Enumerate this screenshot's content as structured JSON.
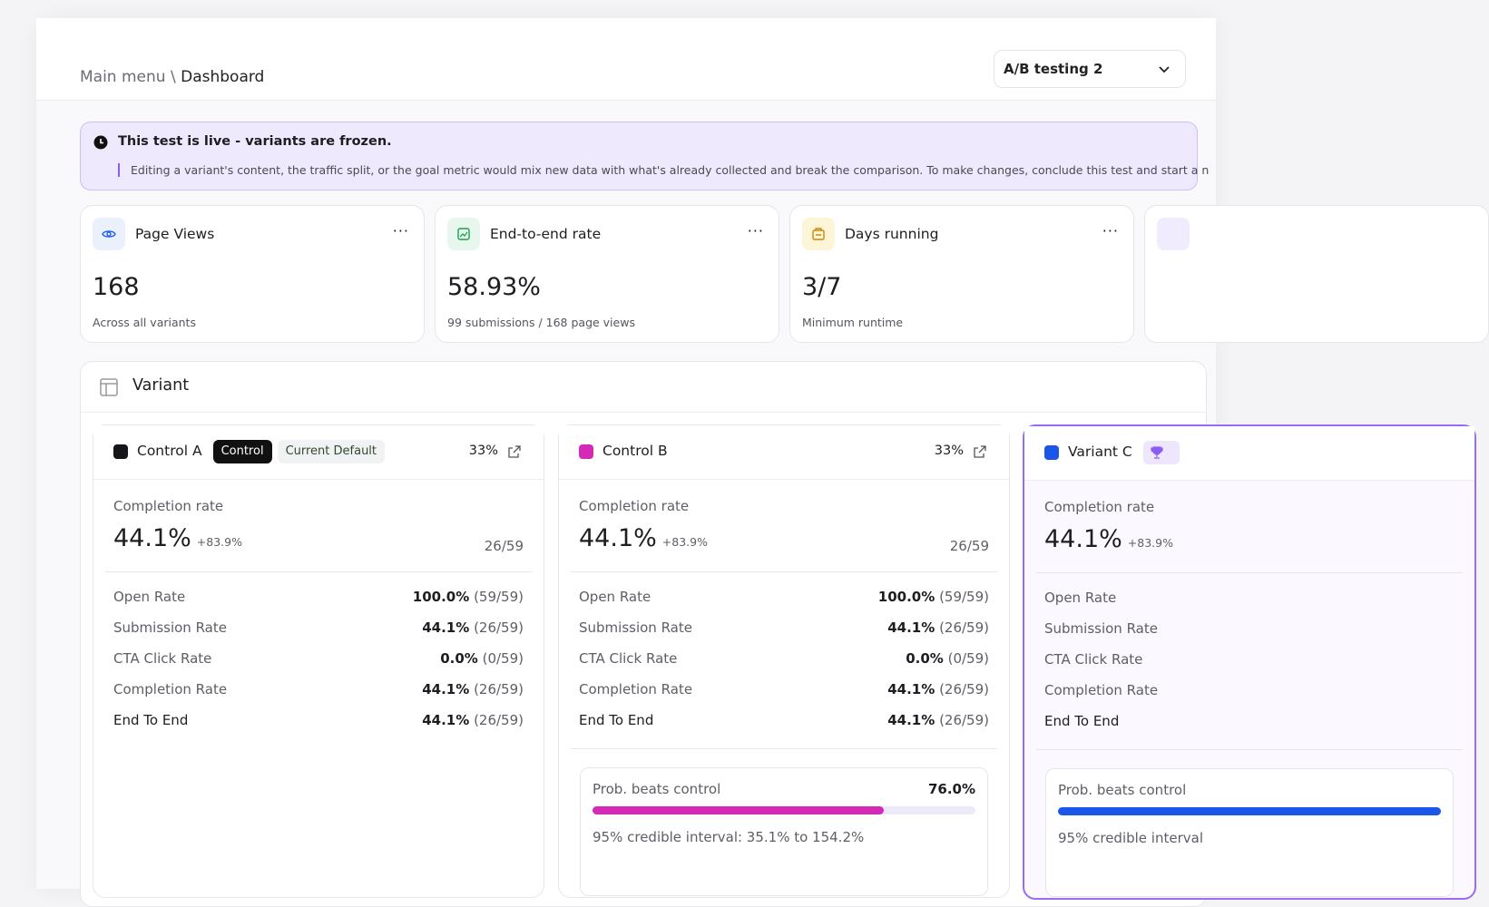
{
  "breadcrumb": {
    "parent": "Main menu",
    "separator": "\\",
    "current": "Dashboard"
  },
  "test_selector": {
    "label": "A/B testing 2"
  },
  "banner": {
    "title": "This test is live - variants are frozen.",
    "body": "Editing a variant's content, the traffic split, or the goal metric would mix new data with what's already collected and break the comparison. To make changes, conclude this test and start a n"
  },
  "stats": [
    {
      "title": "Page Views",
      "value": "168",
      "caption": "Across all variants"
    },
    {
      "title": "End-to-end rate",
      "value": "58.93%",
      "caption": "99 submissions / 168 page views"
    },
    {
      "title": "Days running",
      "value": "3/7",
      "caption": "Minimum runtime"
    }
  ],
  "variants_panel": {
    "title": "Variant",
    "cards": [
      {
        "name": "Control A",
        "color": "#16161a",
        "tags": [
          "Control",
          "Current Default"
        ],
        "split": "33%",
        "metric_label": "Completion rate",
        "metric_value": "44.1%",
        "metric_delta": "+83.9%",
        "metric_count": "26/59",
        "rows": [
          {
            "label": "Open Rate",
            "value": "100.0%",
            "count": "(59/59)"
          },
          {
            "label": "Submission Rate",
            "value": "44.1%",
            "count": "(26/59)"
          },
          {
            "label": "CTA Click Rate",
            "value": "0.0%",
            "count": "(0/59)"
          },
          {
            "label": "Completion Rate",
            "value": "44.1%",
            "count": "(26/59)"
          },
          {
            "label": "End To End",
            "value": "44.1%",
            "count": "(26/59)"
          }
        ]
      },
      {
        "name": "Control B",
        "color": "#d42ab8",
        "split": "33%",
        "metric_label": "Completion rate",
        "metric_value": "44.1%",
        "metric_delta": "+83.9%",
        "metric_count": "26/59",
        "rows": [
          {
            "label": "Open Rate",
            "value": "100.0%",
            "count": "(59/59)"
          },
          {
            "label": "Submission Rate",
            "value": "44.1%",
            "count": "(26/59)"
          },
          {
            "label": "CTA Click Rate",
            "value": "0.0%",
            "count": "(0/59)"
          },
          {
            "label": "Completion Rate",
            "value": "44.1%",
            "count": "(26/59)"
          },
          {
            "label": "End To End",
            "value": "44.1%",
            "count": "(26/59)"
          }
        ],
        "probability": {
          "label": "Prob. beats control",
          "value": {
            "value": 76.0,
            "label": "76.0%"
          },
          "interval": "95% credible interval: 35.1% to 154.2%"
        }
      },
      {
        "name": "Variant C",
        "color": "#1a56e8",
        "metric_label": "Completion rate",
        "metric_value": "44.1%",
        "metric_delta": "+83.9%",
        "rows": [
          {
            "label": "Open Rate"
          },
          {
            "label": "Submission Rate"
          },
          {
            "label": "CTA Click Rate"
          },
          {
            "label": "Completion Rate"
          },
          {
            "label": "End To End"
          }
        ],
        "probability": {
          "label": "Prob. beats control",
          "interval": "95% credible interval"
        }
      }
    ]
  }
}
